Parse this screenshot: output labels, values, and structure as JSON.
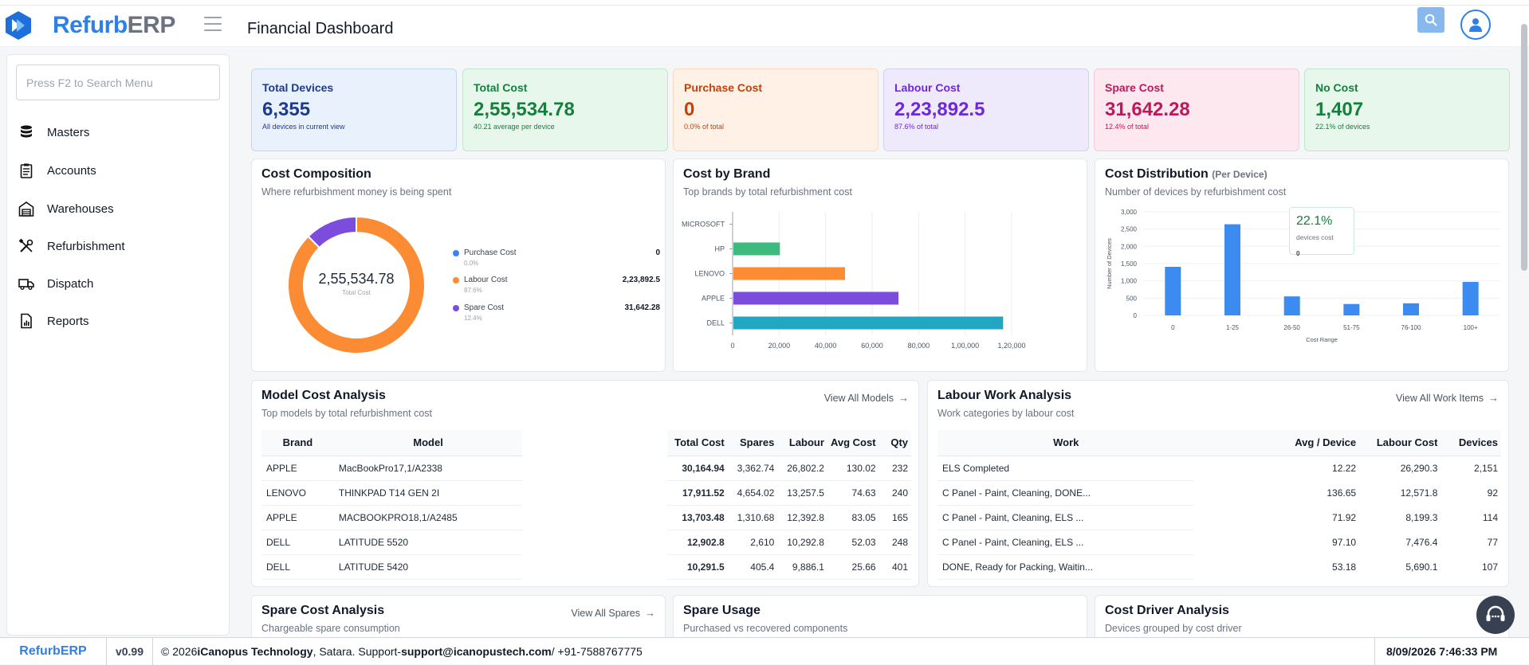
{
  "app": {
    "brand_part1": "Refurb",
    "brand_part2": "ERP",
    "page_title": "Financial Dashboard"
  },
  "sidebar": {
    "search_placeholder": "Press F2 to Search Menu",
    "items": [
      {
        "label": "Masters",
        "icon": "database-icon"
      },
      {
        "label": "Accounts",
        "icon": "clipboard-icon"
      },
      {
        "label": "Warehouses",
        "icon": "warehouse-icon"
      },
      {
        "label": "Refurbishment",
        "icon": "tools-icon"
      },
      {
        "label": "Dispatch",
        "icon": "truck-icon"
      },
      {
        "label": "Reports",
        "icon": "report-icon"
      }
    ]
  },
  "kpis": [
    {
      "label": "Total Devices",
      "value": "6,355",
      "sub": "All devices in current view",
      "color": "#1e3a8a",
      "bg": "#e8f1fc",
      "border": "#bfd7f5"
    },
    {
      "label": "Total Cost",
      "value": "2,55,534.78",
      "sub": "40.21 average per device",
      "color": "#15803d",
      "bg": "#e8f7ec",
      "border": "#bfe8cb"
    },
    {
      "label": "Purchase Cost",
      "value": "0",
      "sub": "0.0% of total",
      "color": "#c2410c",
      "bg": "#fff1e6",
      "border": "#fcd9bd"
    },
    {
      "label": "Labour Cost",
      "value": "2,23,892.5",
      "sub": "87.6% of total",
      "color": "#6d28d9",
      "bg": "#efe9fc",
      "border": "#d8cdf5"
    },
    {
      "label": "Spare Cost",
      "value": "31,642.28",
      "sub": "12.4% of total",
      "color": "#be185d",
      "bg": "#fde8ef",
      "border": "#f8c9da"
    },
    {
      "label": "No Cost",
      "value": "1,407",
      "sub": "22.1% of devices",
      "color": "#15803d",
      "bg": "#e8f7ec",
      "border": "#bfe8cb"
    }
  ],
  "cost_composition": {
    "title": "Cost Composition",
    "subtitle": "Where refurbishment money is being spent",
    "center_value": "2,55,534.78",
    "center_label": "Total Cost",
    "legend": [
      {
        "name": "Purchase Cost",
        "pct": "0.0%",
        "value": "0",
        "color": "#3b82f6"
      },
      {
        "name": "Labour Cost",
        "pct": "87.6%",
        "value": "2,23,892.5",
        "color": "#fb8c34"
      },
      {
        "name": "Spare Cost",
        "pct": "12.4%",
        "value": "31,642.28",
        "color": "#7c4ddd"
      }
    ]
  },
  "cost_by_brand": {
    "title": "Cost by Brand",
    "subtitle": "Top brands by total refurbishment cost"
  },
  "cost_distribution": {
    "title": "Cost Distribution",
    "title_suffix": "(Per Device)",
    "subtitle": "Number of devices by refurbishment cost",
    "tooltip_value": "22.1%",
    "tooltip_label": "devices cost",
    "tooltip_extra": "0"
  },
  "chart_data": [
    {
      "type": "pie",
      "categories": [
        "Purchase Cost",
        "Labour Cost",
        "Spare Cost"
      ],
      "values": [
        0,
        223892.5,
        31642.28
      ],
      "colors": [
        "#3b82f6",
        "#fb8c34",
        "#7c4ddd"
      ],
      "title": "Cost Composition"
    },
    {
      "type": "bar",
      "orientation": "horizontal",
      "categories": [
        "MICROSOFT",
        "HP",
        "LENOVO",
        "APPLE",
        "DELL"
      ],
      "values": [
        0,
        20000,
        48000,
        71000,
        116000
      ],
      "colors": [
        "#3b82f6",
        "#3dba7e",
        "#fb8c34",
        "#7c4ddd",
        "#22a6c2"
      ],
      "xlim": [
        0,
        120000
      ],
      "xticks": [
        "0",
        "20,000",
        "40,000",
        "60,000",
        "80,000",
        "1,00,000",
        "1,20,000"
      ],
      "title": "Cost by Brand"
    },
    {
      "type": "bar",
      "categories": [
        "0",
        "1-25",
        "26-50",
        "51-75",
        "76-100",
        "100+"
      ],
      "values": [
        1407,
        2640,
        550,
        330,
        350,
        970
      ],
      "color": "#3b8bf0",
      "ylim": [
        0,
        3000
      ],
      "yticks": [
        "0",
        "500",
        "1,000",
        "1,500",
        "2,000",
        "2,500",
        "3,000"
      ],
      "xlabel": "Cost Range",
      "ylabel": "Number of Devices",
      "title": "Cost Distribution"
    }
  ],
  "model_cost": {
    "title": "Model Cost Analysis",
    "subtitle": "Top models by total refurbishment cost",
    "view_all": "View All Models",
    "columns": [
      "Brand",
      "Model",
      "Total Cost",
      "Spares",
      "Labour",
      "Avg Cost",
      "Qty"
    ],
    "rows": [
      [
        "APPLE",
        "MacBookPro17,1/A2338",
        "30,164.94",
        "3,362.74",
        "26,802.2",
        "130.02",
        "232"
      ],
      [
        "LENOVO",
        "THINKPAD T14 GEN 2I",
        "17,911.52",
        "4,654.02",
        "13,257.5",
        "74.63",
        "240"
      ],
      [
        "APPLE",
        "MACBOOKPRO18,1/A2485",
        "13,703.48",
        "1,310.68",
        "12,392.8",
        "83.05",
        "165"
      ],
      [
        "DELL",
        "LATITUDE 5520",
        "12,902.8",
        "2,610",
        "10,292.8",
        "52.03",
        "248"
      ],
      [
        "DELL",
        "LATITUDE 5420",
        "10,291.5",
        "405.4",
        "9,886.1",
        "25.66",
        "401"
      ]
    ]
  },
  "labour_work": {
    "title": "Labour Work Analysis",
    "subtitle": "Work categories by labour cost",
    "view_all": "View All Work Items",
    "columns": [
      "Work",
      "Avg / Device",
      "Labour Cost",
      "Devices"
    ],
    "rows": [
      [
        "ELS Completed",
        "12.22",
        "26,290.3",
        "2,151"
      ],
      [
        "C Panel - Paint, Cleaning, DONE...",
        "136.65",
        "12,571.8",
        "92"
      ],
      [
        "C Panel - Paint, Cleaning, ELS ...",
        "71.92",
        "8,199.3",
        "114"
      ],
      [
        "C Panel - Paint, Cleaning, ELS ...",
        "97.10",
        "7,476.4",
        "77"
      ],
      [
        "DONE, Ready for Packing, Waitin...",
        "53.18",
        "5,690.1",
        "107"
      ]
    ]
  },
  "spare_cost": {
    "title": "Spare Cost Analysis",
    "subtitle": "Chargeable spare consumption",
    "view_all": "View All Spares"
  },
  "spare_usage": {
    "title": "Spare Usage",
    "subtitle": "Purchased vs recovered components"
  },
  "cost_driver": {
    "title": "Cost Driver Analysis",
    "subtitle": "Devices grouped by cost driver"
  },
  "footer": {
    "brand": "RefurbERP",
    "version": "v0.99",
    "copyright_prefix": "© 2026 ",
    "company": "iCanopus Technology",
    "location_support": ", Satara. Support-",
    "email": "support@icanopustech.com",
    "phone": " / +91-7588767775",
    "datetime": "8/09/2026 7:46:33 PM"
  }
}
